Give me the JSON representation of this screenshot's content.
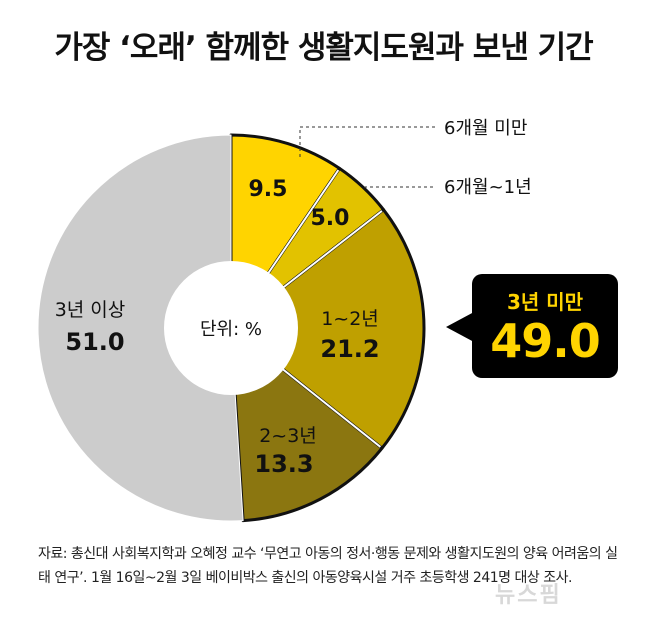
{
  "title": "가장 ‘오래’ 함께한 생활지도원과 보낸 기간",
  "center_label": "단위: %",
  "callout": {
    "label": "3년 미만",
    "value": "49.0"
  },
  "source": "자료: 총신대 사회복지학과 오혜정 교수 ‘무연고 아동의 정서·행동 문제와 생활지도원의 양육 어려움의 실태 연구’. 1월 16일~2월 3일 베이비박스 출신의 아동양육시설 거주 초등학생 241명 대상 조사.",
  "watermark": "뉴스핌",
  "colors": {
    "under6m": "#ffd400",
    "m6to1y": "#e2c200",
    "y1to2": "#bfa000",
    "y2to3": "#8b7610",
    "over3y": "#cccccc"
  },
  "chart_data": {
    "type": "pie",
    "title": "가장 ‘오래’ 함께한 생활지도원과 보낸 기간",
    "unit": "단위: %",
    "slices": [
      {
        "key": "under6m",
        "label": "6개월 미만",
        "value": 9.5
      },
      {
        "key": "m6to1y",
        "label": "6개월~1년",
        "value": 5.0
      },
      {
        "key": "y1to2",
        "label": "1~2년",
        "value": 21.2
      },
      {
        "key": "y2to3",
        "label": "2~3년",
        "value": 13.3
      },
      {
        "key": "over3y",
        "label": "3년 이상",
        "value": 51.0
      }
    ],
    "highlight": {
      "label": "3년 미만",
      "value": 49.0
    }
  }
}
